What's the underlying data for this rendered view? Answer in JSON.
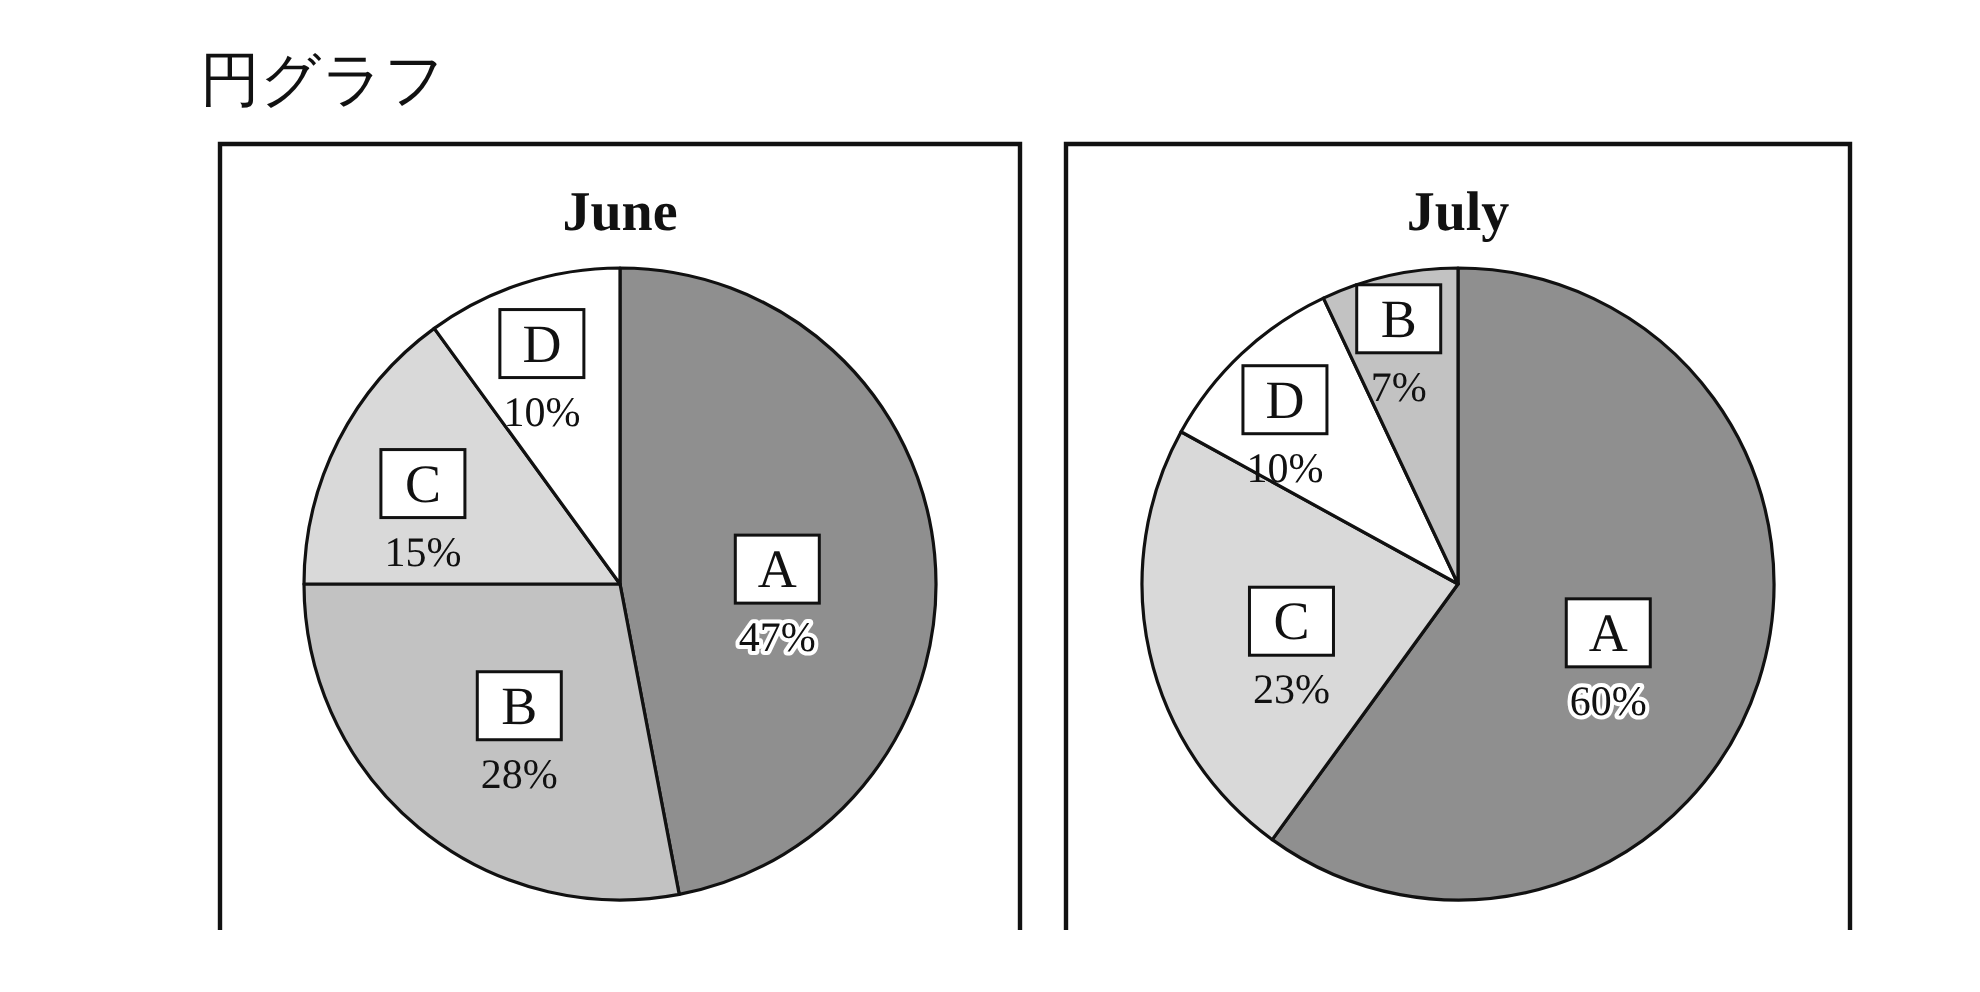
{
  "chart_data": [
    {
      "type": "pie",
      "title": "June",
      "categories": [
        "A",
        "B",
        "C",
        "D"
      ],
      "values": [
        47,
        28,
        15,
        10
      ],
      "value_labels": [
        "47%",
        "28%",
        "15%",
        "10%"
      ],
      "colors": [
        "#8f8f8f",
        "#c2c2c2",
        "#d9d9d9",
        "#ffffff"
      ],
      "annotations": [
        "円グラフ"
      ]
    },
    {
      "type": "pie",
      "title": "July",
      "categories": [
        "A",
        "C",
        "D",
        "B"
      ],
      "values": [
        60,
        23,
        10,
        7
      ],
      "value_labels": [
        "60%",
        "23%",
        "10%",
        "7%"
      ],
      "colors": [
        "#8f8f8f",
        "#d9d9d9",
        "#ffffff",
        "#c2c2c2"
      ]
    }
  ]
}
